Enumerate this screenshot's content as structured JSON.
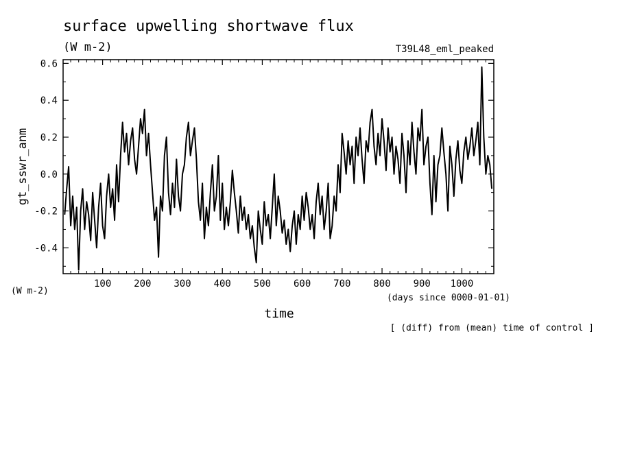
{
  "chart_data": {
    "type": "line",
    "title": "surface upwelling shortwave flux",
    "title_units": "(W m-2)",
    "run_name": "T39L48_eml_peaked",
    "ylabel": "gt_sswr_anm",
    "y_units": "(W m-2)",
    "xlabel": "time",
    "x_units": "(days since 0000-01-01)",
    "note": "[ (diff) from (mean) time of control ]",
    "xlim": [
      1,
      1080
    ],
    "ylim": [
      -0.54,
      0.62
    ],
    "xticks": [
      100,
      200,
      300,
      400,
      500,
      600,
      700,
      800,
      900,
      1000
    ],
    "yticks": [
      -0.4,
      -0.2,
      0.0,
      0.2,
      0.4,
      0.6
    ],
    "ytick_labels": [
      "-0.4",
      "-0.2",
      "0.0",
      "0.2",
      "0.4",
      "0.6"
    ],
    "grid": false,
    "series": [
      {
        "x": [
          5,
          10,
          15,
          20,
          25,
          30,
          35,
          40,
          45,
          50,
          55,
          60,
          65,
          70,
          75,
          80,
          85,
          90,
          95,
          100,
          105,
          110,
          115,
          120,
          125,
          130,
          135,
          140,
          145,
          150,
          155,
          160,
          165,
          170,
          175,
          180,
          185,
          190,
          195,
          200,
          205,
          210,
          215,
          220,
          225,
          230,
          235,
          240,
          245,
          250,
          255,
          260,
          265,
          270,
          275,
          280,
          285,
          290,
          295,
          300,
          305,
          310,
          315,
          320,
          325,
          330,
          335,
          340,
          345,
          350,
          355,
          360,
          365,
          370,
          375,
          380,
          385,
          390,
          395,
          400,
          405,
          410,
          415,
          420,
          425,
          430,
          435,
          440,
          445,
          450,
          455,
          460,
          465,
          470,
          475,
          480,
          485,
          490,
          495,
          500,
          505,
          510,
          515,
          520,
          525,
          530,
          535,
          540,
          545,
          550,
          555,
          560,
          565,
          570,
          575,
          580,
          585,
          590,
          595,
          600,
          605,
          610,
          615,
          620,
          625,
          630,
          635,
          640,
          645,
          650,
          655,
          660,
          665,
          670,
          675,
          680,
          685,
          690,
          695,
          700,
          705,
          710,
          715,
          720,
          725,
          730,
          735,
          740,
          745,
          750,
          755,
          760,
          765,
          770,
          775,
          780,
          785,
          790,
          795,
          800,
          805,
          810,
          815,
          820,
          825,
          830,
          835,
          840,
          845,
          850,
          855,
          860,
          865,
          870,
          875,
          880,
          885,
          890,
          895,
          900,
          905,
          910,
          915,
          920,
          925,
          930,
          935,
          940,
          945,
          950,
          955,
          960,
          965,
          970,
          975,
          980,
          985,
          990,
          995,
          1000,
          1005,
          1010,
          1015,
          1020,
          1025,
          1030,
          1035,
          1040,
          1045,
          1050,
          1055,
          1060,
          1065,
          1070,
          1075
        ],
        "y": [
          -0.22,
          -0.08,
          0.04,
          -0.28,
          -0.12,
          -0.3,
          -0.18,
          -0.52,
          -0.2,
          -0.08,
          -0.3,
          -0.15,
          -0.22,
          -0.36,
          -0.1,
          -0.25,
          -0.4,
          -0.18,
          -0.05,
          -0.28,
          -0.35,
          -0.12,
          0.0,
          -0.18,
          -0.08,
          -0.25,
          0.05,
          -0.15,
          0.1,
          0.28,
          0.12,
          0.22,
          0.05,
          0.18,
          0.25,
          0.08,
          0.0,
          0.15,
          0.3,
          0.22,
          0.35,
          0.1,
          0.22,
          0.05,
          -0.1,
          -0.25,
          -0.18,
          -0.45,
          -0.12,
          -0.2,
          0.1,
          0.2,
          -0.1,
          -0.22,
          -0.05,
          -0.18,
          0.08,
          -0.12,
          -0.2,
          0.0,
          0.05,
          0.2,
          0.28,
          0.1,
          0.18,
          0.25,
          0.08,
          -0.15,
          -0.25,
          -0.05,
          -0.35,
          -0.18,
          -0.28,
          -0.1,
          0.05,
          -0.2,
          -0.12,
          0.1,
          -0.25,
          -0.05,
          -0.3,
          -0.18,
          -0.28,
          -0.15,
          0.02,
          -0.1,
          -0.2,
          -0.32,
          -0.12,
          -0.25,
          -0.18,
          -0.3,
          -0.22,
          -0.35,
          -0.28,
          -0.4,
          -0.48,
          -0.2,
          -0.3,
          -0.38,
          -0.15,
          -0.28,
          -0.22,
          -0.35,
          -0.18,
          0.0,
          -0.28,
          -0.12,
          -0.2,
          -0.32,
          -0.25,
          -0.38,
          -0.3,
          -0.42,
          -0.28,
          -0.2,
          -0.38,
          -0.22,
          -0.3,
          -0.12,
          -0.25,
          -0.1,
          -0.18,
          -0.3,
          -0.22,
          -0.35,
          -0.15,
          -0.05,
          -0.22,
          -0.12,
          -0.3,
          -0.2,
          -0.05,
          -0.35,
          -0.28,
          -0.12,
          -0.2,
          0.05,
          -0.1,
          0.22,
          0.12,
          0.0,
          0.18,
          0.05,
          0.15,
          -0.05,
          0.2,
          0.1,
          0.25,
          0.08,
          -0.05,
          0.18,
          0.12,
          0.28,
          0.35,
          0.15,
          0.05,
          0.22,
          0.1,
          0.3,
          0.18,
          0.02,
          0.25,
          0.12,
          0.2,
          0.0,
          0.15,
          0.08,
          -0.05,
          0.22,
          0.1,
          -0.1,
          0.18,
          0.05,
          0.28,
          0.12,
          0.0,
          0.25,
          0.18,
          0.35,
          0.05,
          0.15,
          0.2,
          -0.05,
          -0.22,
          0.1,
          -0.15,
          0.05,
          0.1,
          0.25,
          0.12,
          0.0,
          -0.2,
          0.15,
          0.05,
          -0.12,
          0.08,
          0.18,
          0.02,
          -0.05,
          0.12,
          0.2,
          0.08,
          0.15,
          0.25,
          0.1,
          0.18,
          0.28,
          0.05,
          0.58,
          0.2,
          0.0,
          0.1,
          0.05,
          -0.08
        ]
      }
    ]
  }
}
